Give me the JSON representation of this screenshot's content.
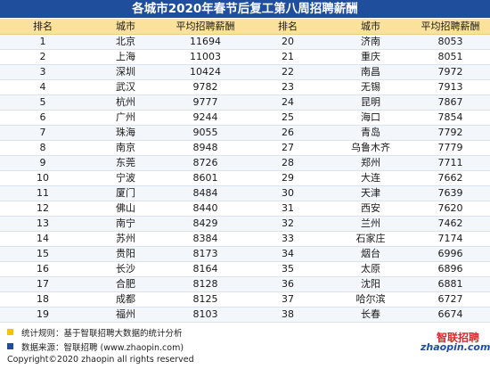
{
  "title": "各城市2020年春节后复工第八周招聘薪酬",
  "table": {
    "headers": [
      "排名",
      "城市",
      "平均招聘薪酬",
      "排名",
      "城市",
      "平均招聘薪酬"
    ],
    "rows": [
      [
        "1",
        "北京",
        "11694",
        "20",
        "济南",
        "8053"
      ],
      [
        "2",
        "上海",
        "11003",
        "21",
        "重庆",
        "8051"
      ],
      [
        "3",
        "深圳",
        "10424",
        "22",
        "南昌",
        "7972"
      ],
      [
        "4",
        "武汉",
        "9782",
        "23",
        "无锡",
        "7913"
      ],
      [
        "5",
        "杭州",
        "9777",
        "24",
        "昆明",
        "7867"
      ],
      [
        "6",
        "广州",
        "9244",
        "25",
        "海口",
        "7854"
      ],
      [
        "7",
        "珠海",
        "9055",
        "26",
        "青岛",
        "7792"
      ],
      [
        "8",
        "南京",
        "8948",
        "27",
        "乌鲁木齐",
        "7779"
      ],
      [
        "9",
        "东莞",
        "8726",
        "28",
        "郑州",
        "7711"
      ],
      [
        "10",
        "宁波",
        "8601",
        "29",
        "大连",
        "7662"
      ],
      [
        "11",
        "厦门",
        "8484",
        "30",
        "天津",
        "7639"
      ],
      [
        "12",
        "佛山",
        "8440",
        "31",
        "西安",
        "7620"
      ],
      [
        "13",
        "南宁",
        "8429",
        "32",
        "兰州",
        "7462"
      ],
      [
        "14",
        "苏州",
        "8384",
        "33",
        "石家庄",
        "7174"
      ],
      [
        "15",
        "贵阳",
        "8173",
        "34",
        "烟台",
        "6996"
      ],
      [
        "16",
        "长沙",
        "8164",
        "35",
        "太原",
        "6896"
      ],
      [
        "17",
        "合肥",
        "8128",
        "36",
        "沈阳",
        "6881"
      ],
      [
        "18",
        "成都",
        "8125",
        "37",
        "哈尔滨",
        "6727"
      ],
      [
        "19",
        "福州",
        "8103",
        "38",
        "长春",
        "6674"
      ]
    ]
  },
  "footer": {
    "note1": "统计规则：基于智联招聘大数据的统计分析",
    "note2": "数据来源：智联招聘 (www.zhaopin.com)",
    "copyright": "Copyright©2020 zhaopin all rights reserved",
    "note1_color": "#f5c400",
    "note2_color": "#1f4e9c"
  },
  "logo": {
    "cn": "智联招聘",
    "en": "zhaopin.com"
  }
}
